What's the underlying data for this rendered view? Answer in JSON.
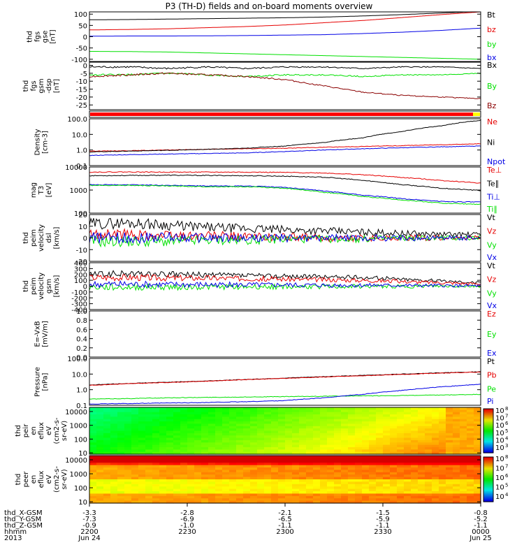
{
  "title": "P3 (TH-D) fields and on-board moments overview",
  "colors": {
    "black": "#000000",
    "red": "#e60000",
    "green": "#00e000",
    "blue": "#0000e6",
    "darkred": "#8b0000"
  },
  "chart_data": [
    {
      "type": "line",
      "id": "fgs_gse",
      "ylabel": [
        "thd",
        "fgs",
        "gse",
        "[nT]"
      ],
      "ylim": [
        -110,
        110
      ],
      "yticks": [
        100,
        50,
        0,
        -50,
        -100
      ],
      "series": [
        {
          "name": "Bt",
          "color": "#000000",
          "values": [
            75,
            76,
            78,
            80,
            82,
            84,
            87,
            92,
            98,
            105,
            112
          ]
        },
        {
          "name": "bz",
          "color": "#e60000",
          "values": [
            30,
            32,
            35,
            40,
            45,
            52,
            62,
            72,
            85,
            98,
            110
          ]
        },
        {
          "name": "by",
          "color": "#00e000",
          "values": [
            -65,
            -66,
            -68,
            -72,
            -76,
            -80,
            -84,
            -88,
            -92,
            -96,
            -100
          ]
        },
        {
          "name": "bx",
          "color": "#0000e6",
          "values": [
            2,
            3,
            3,
            4,
            5,
            7,
            9,
            14,
            20,
            28,
            38
          ]
        }
      ]
    },
    {
      "type": "line",
      "id": "fgs_gsm",
      "ylabel": [
        "thd",
        "fgs",
        "gsm",
        "-dsp",
        "[nT]"
      ],
      "ylim": [
        -28,
        2
      ],
      "yticks": [
        0,
        -5,
        -10,
        -15,
        -20,
        -25
      ],
      "series": [
        {
          "name": "Bx",
          "color": "#000000",
          "values": [
            -1,
            -1,
            -2,
            -1,
            -2,
            -1,
            -1,
            -2,
            -1,
            -1,
            -2
          ]
        },
        {
          "name": "By",
          "color": "#00e000",
          "values": [
            -6,
            -6,
            -5,
            -6,
            -7,
            -6,
            -6,
            -7,
            -6,
            -6,
            -5
          ]
        },
        {
          "name": "Bz",
          "color": "#8b0000",
          "values": [
            -7,
            -6,
            -5,
            -6,
            -7,
            -9,
            -13,
            -17,
            -19,
            -20,
            -21
          ]
        }
      ]
    },
    {
      "type": "line",
      "id": "density",
      "ylabel": [
        "Density",
        "[cm-3]"
      ],
      "log": true,
      "ylim": [
        0.1,
        100
      ],
      "yticks": [
        100,
        10,
        1,
        0.1
      ],
      "yticklabels": [
        "100.0",
        "10.0",
        "1.0",
        "0.1"
      ],
      "series": [
        {
          "name": "Ne",
          "color": "#e60000",
          "values": [
            0.85,
            0.9,
            1.0,
            1.1,
            1.2,
            1.3,
            1.5,
            1.7,
            1.9,
            2.2,
            2.5
          ]
        },
        {
          "name": "Ni",
          "color": "#000000",
          "values": [
            0.75,
            0.85,
            0.95,
            1.1,
            1.3,
            1.8,
            3.0,
            6.0,
            15,
            35,
            80
          ]
        },
        {
          "name": "Npot",
          "color": "#0000e6",
          "values": [
            0.45,
            0.5,
            0.55,
            0.6,
            0.65,
            0.8,
            1.0,
            1.2,
            1.4,
            1.6,
            1.8
          ]
        }
      ]
    },
    {
      "type": "line",
      "id": "temperature",
      "ylabel": [
        "mag",
        "T3",
        "[eV]"
      ],
      "log": true,
      "ylim": [
        100,
        10000
      ],
      "yticks": [
        10000,
        1000,
        100
      ],
      "yticklabels": [
        "10000",
        "1000",
        "100"
      ],
      "series": [
        {
          "name": "Te⊥",
          "color": "#e60000",
          "values": [
            6000,
            6100,
            6000,
            6000,
            6000,
            5800,
            5500,
            4600,
            3500,
            2600,
            2000
          ]
        },
        {
          "name": "Te∥",
          "color": "#000000",
          "values": [
            4200,
            4300,
            4400,
            4300,
            4200,
            4000,
            3600,
            2600,
            1700,
            1200,
            950
          ]
        },
        {
          "name": "Ti⊥",
          "color": "#0000e6",
          "values": [
            1700,
            1700,
            1600,
            1500,
            1500,
            1300,
            900,
            600,
            420,
            320,
            300
          ]
        },
        {
          "name": "Ti∥",
          "color": "#00e000",
          "values": [
            1600,
            1600,
            1500,
            1400,
            1400,
            1200,
            800,
            520,
            370,
            270,
            240
          ]
        }
      ]
    },
    {
      "type": "line",
      "id": "velocity_dsl",
      "ylabel": [
        "thd",
        "peim",
        "velocity",
        "dsl",
        "[km/s]"
      ],
      "ylim": [
        -20,
        20
      ],
      "yticks": [
        20,
        10,
        0,
        -10,
        -20
      ],
      "series": [
        {
          "name": "Vt",
          "color": "#000000",
          "values": [
            12,
            13,
            11,
            9,
            8,
            7,
            6,
            5,
            4,
            3,
            3
          ]
        },
        {
          "name": "Vz",
          "color": "#e60000",
          "values": [
            3,
            3,
            2,
            2,
            1,
            1,
            0,
            0,
            0,
            0,
            0
          ]
        },
        {
          "name": "Vy",
          "color": "#00e000",
          "values": [
            -3,
            -3,
            -3,
            -2,
            -2,
            -1,
            -1,
            -1,
            0,
            0,
            0
          ]
        },
        {
          "name": "Vx",
          "color": "#0000e6",
          "values": [
            0,
            0,
            1,
            0,
            0,
            0,
            0,
            0,
            0,
            0,
            0
          ]
        }
      ]
    },
    {
      "type": "line",
      "id": "velocity_gsm",
      "ylabel": [
        "thd",
        "peim",
        "velocity",
        "gsm",
        "[km/s]"
      ],
      "ylim": [
        -400,
        400
      ],
      "yticks": [
        400,
        300,
        200,
        100,
        0,
        -100,
        -200,
        -300,
        -400
      ],
      "series": [
        {
          "name": "Vt",
          "color": "#000000",
          "values": [
            200,
            210,
            200,
            190,
            180,
            170,
            160,
            150,
            120,
            90,
            60
          ]
        },
        {
          "name": "Vz",
          "color": "#e60000",
          "values": [
            150,
            150,
            140,
            140,
            130,
            120,
            110,
            100,
            80,
            60,
            40
          ]
        },
        {
          "name": "Vy",
          "color": "#00e000",
          "values": [
            -20,
            -20,
            -15,
            -15,
            -10,
            -10,
            -10,
            -5,
            -5,
            0,
            0
          ]
        },
        {
          "name": "Vx",
          "color": "#0000e6",
          "values": [
            30,
            30,
            25,
            25,
            20,
            20,
            15,
            15,
            10,
            10,
            5
          ]
        }
      ]
    },
    {
      "type": "line",
      "id": "efield",
      "ylabel": [
        "E=-VxB",
        "[mV/m]"
      ],
      "ylim": [
        0,
        1
      ],
      "yticks": [
        1,
        0.8,
        0.6,
        0.4,
        0.2,
        0
      ],
      "yticklabels": [
        "1.0",
        "0.8",
        "0.6",
        "0.4",
        "0.2",
        "0.0"
      ],
      "series": [
        {
          "name": "Ez",
          "color": "#e60000",
          "values": []
        },
        {
          "name": "Ey",
          "color": "#00e000",
          "values": []
        },
        {
          "name": "Ex",
          "color": "#0000e6",
          "values": []
        }
      ]
    },
    {
      "type": "line",
      "id": "pressure",
      "ylabel": [
        "Pressure",
        "[nPa]"
      ],
      "log": true,
      "ylim": [
        0.1,
        100
      ],
      "yticks": [
        100,
        10,
        1,
        0.1
      ],
      "yticklabels": [
        "100.0",
        "10.0",
        "1.0",
        "0.1"
      ],
      "series": [
        {
          "name": "Pt",
          "color": "#000000",
          "values": [
            2.0,
            2.5,
            3.0,
            3.6,
            4.5,
            5.5,
            6.8,
            8.2,
            10,
            12,
            14
          ]
        },
        {
          "name": "Pb",
          "color": "#e60000",
          "values": [
            1.9,
            2.4,
            2.9,
            3.5,
            4.4,
            5.3,
            6.5,
            7.8,
            9.5,
            11.5,
            13.5
          ]
        },
        {
          "name": "Pe",
          "color": "#00e000",
          "values": [
            0.25,
            0.27,
            0.3,
            0.32,
            0.34,
            0.36,
            0.38,
            0.4,
            0.42,
            0.45,
            0.5
          ]
        },
        {
          "name": "Pi",
          "color": "#0000e6",
          "values": [
            0.12,
            0.13,
            0.14,
            0.15,
            0.17,
            0.2,
            0.3,
            0.5,
            0.9,
            1.5,
            2.2
          ]
        }
      ]
    },
    {
      "type": "heatmap",
      "id": "peir",
      "ylabel": [
        "thd",
        "peir",
        "en",
        "eflux",
        "eV",
        "(cm2-s-",
        "sr-eV)"
      ],
      "log": true,
      "ylim": [
        8,
        20000
      ],
      "yticks": [
        10000,
        1000,
        100,
        10
      ],
      "yticklabels": [
        "10000",
        "1000",
        "100",
        "10"
      ],
      "colorbar": {
        "min_exp": 3,
        "max_exp": 8,
        "labels": [
          "10",
          "10",
          "10",
          "10",
          "10",
          "10"
        ],
        "exps": [
          "8",
          "7",
          "6",
          "5",
          "4",
          "3"
        ]
      }
    },
    {
      "type": "heatmap",
      "id": "peer",
      "ylabel": [
        "thd",
        "peer",
        "en",
        "eflux",
        "eV",
        "(cm2-s-",
        "sr-eV)"
      ],
      "log": true,
      "ylim": [
        8,
        20000
      ],
      "yticks": [
        10000,
        1000,
        100,
        10
      ],
      "yticklabels": [
        "10000",
        "1000",
        "100",
        "10"
      ],
      "colorbar": {
        "min_exp": 4,
        "max_exp": 8,
        "labels": [
          "10",
          "10",
          "10",
          "10",
          "10"
        ],
        "exps": [
          "8",
          "7",
          "6",
          "5",
          "4"
        ]
      }
    }
  ],
  "xaxis": {
    "rows": [
      {
        "label": "thd_X-GSM",
        "values": [
          "-3.3",
          "-2.8",
          "-2.1",
          "-1.5",
          "-0.8"
        ]
      },
      {
        "label": "thd_Y-GSM",
        "values": [
          "-7.3",
          "-6.9",
          "-6.5",
          "-5.9",
          "-5.2"
        ]
      },
      {
        "label": "thd_Z-GSM",
        "values": [
          "-0.9",
          "-1.0",
          "-1.1",
          "-1.1",
          "-1.1"
        ]
      },
      {
        "label": "hhmm",
        "values": [
          "2200",
          "2230",
          "2300",
          "2330",
          "0000"
        ]
      },
      {
        "label": "2013",
        "values": [
          "Jun 24",
          "",
          "",
          "",
          "Jun 25"
        ]
      }
    ]
  }
}
